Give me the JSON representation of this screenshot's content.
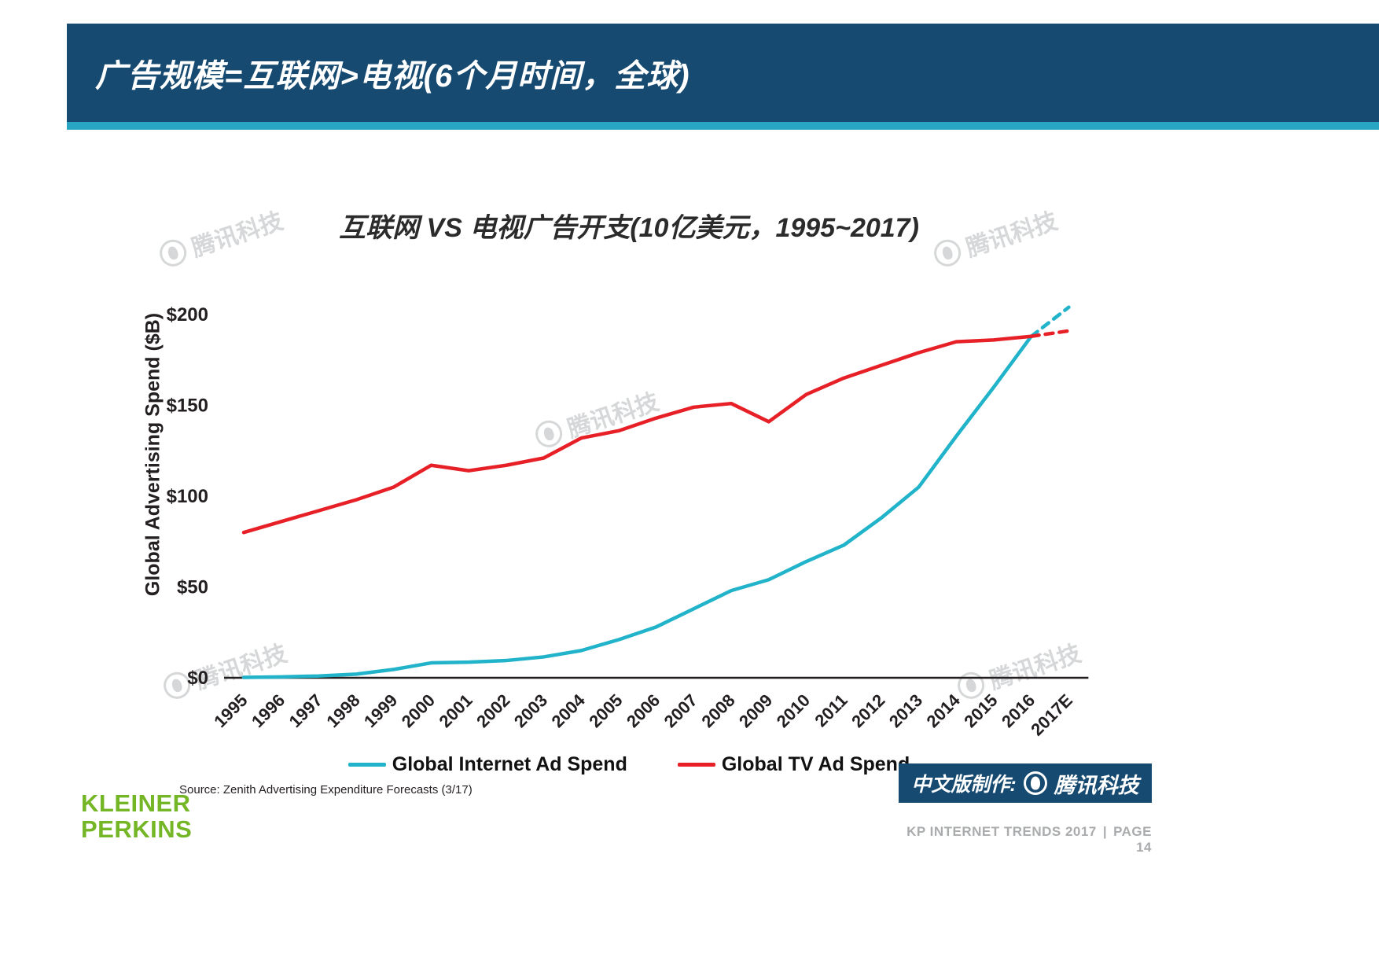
{
  "slide": {
    "header_title": "广告规模=互联网>电视(6个月时间，全球)",
    "watermark_text": "腾讯科技",
    "footer": {
      "brand_line1": "KLEINER",
      "brand_line2": "PERKINS",
      "source": "Source: Zenith Advertising Expenditure Forecasts (3/17)",
      "credit_label": "中文版制作:",
      "credit_brand": "腾讯科技",
      "page_info": "KP INTERNET TRENDS 2017",
      "page_sep": "|",
      "page_number": "PAGE 14"
    }
  },
  "chart_data": {
    "type": "line",
    "title": "互联网 VS 电视广告开支(10亿美元，1995~2017)",
    "xlabel": "",
    "ylabel": "Global Advertising Spend ($B)",
    "ylim": [
      0,
      210
    ],
    "yticks": [
      0,
      50,
      100,
      150,
      200
    ],
    "ytick_labels": [
      "$0",
      "$50",
      "$100",
      "$150",
      "$200"
    ],
    "grid": false,
    "legend_position": "bottom",
    "categories": [
      "1995",
      "1996",
      "1997",
      "1998",
      "1999",
      "2000",
      "2001",
      "2002",
      "2003",
      "2004",
      "2005",
      "2006",
      "2007",
      "2008",
      "2009",
      "2010",
      "2011",
      "2012",
      "2013",
      "2014",
      "2015",
      "2016",
      "2017E"
    ],
    "series": [
      {
        "name": "Global Internet Ad Spend",
        "color": "#20b3c9",
        "dashed_from_index": 21,
        "values": [
          0.2,
          0.5,
          1,
          2,
          4.6,
          8.2,
          8.6,
          9.5,
          11.5,
          15,
          21,
          28,
          38,
          48,
          54,
          64,
          73,
          88,
          105,
          133,
          160,
          188,
          204
        ]
      },
      {
        "name": "Global TV Ad Spend",
        "color": "#e62026",
        "dashed_from_index": 21,
        "values": [
          80,
          86,
          92,
          98,
          105,
          117,
          114,
          117,
          121,
          132,
          136,
          143,
          149,
          151,
          141,
          156,
          165,
          172,
          179,
          185,
          186,
          188,
          191
        ]
      }
    ]
  }
}
